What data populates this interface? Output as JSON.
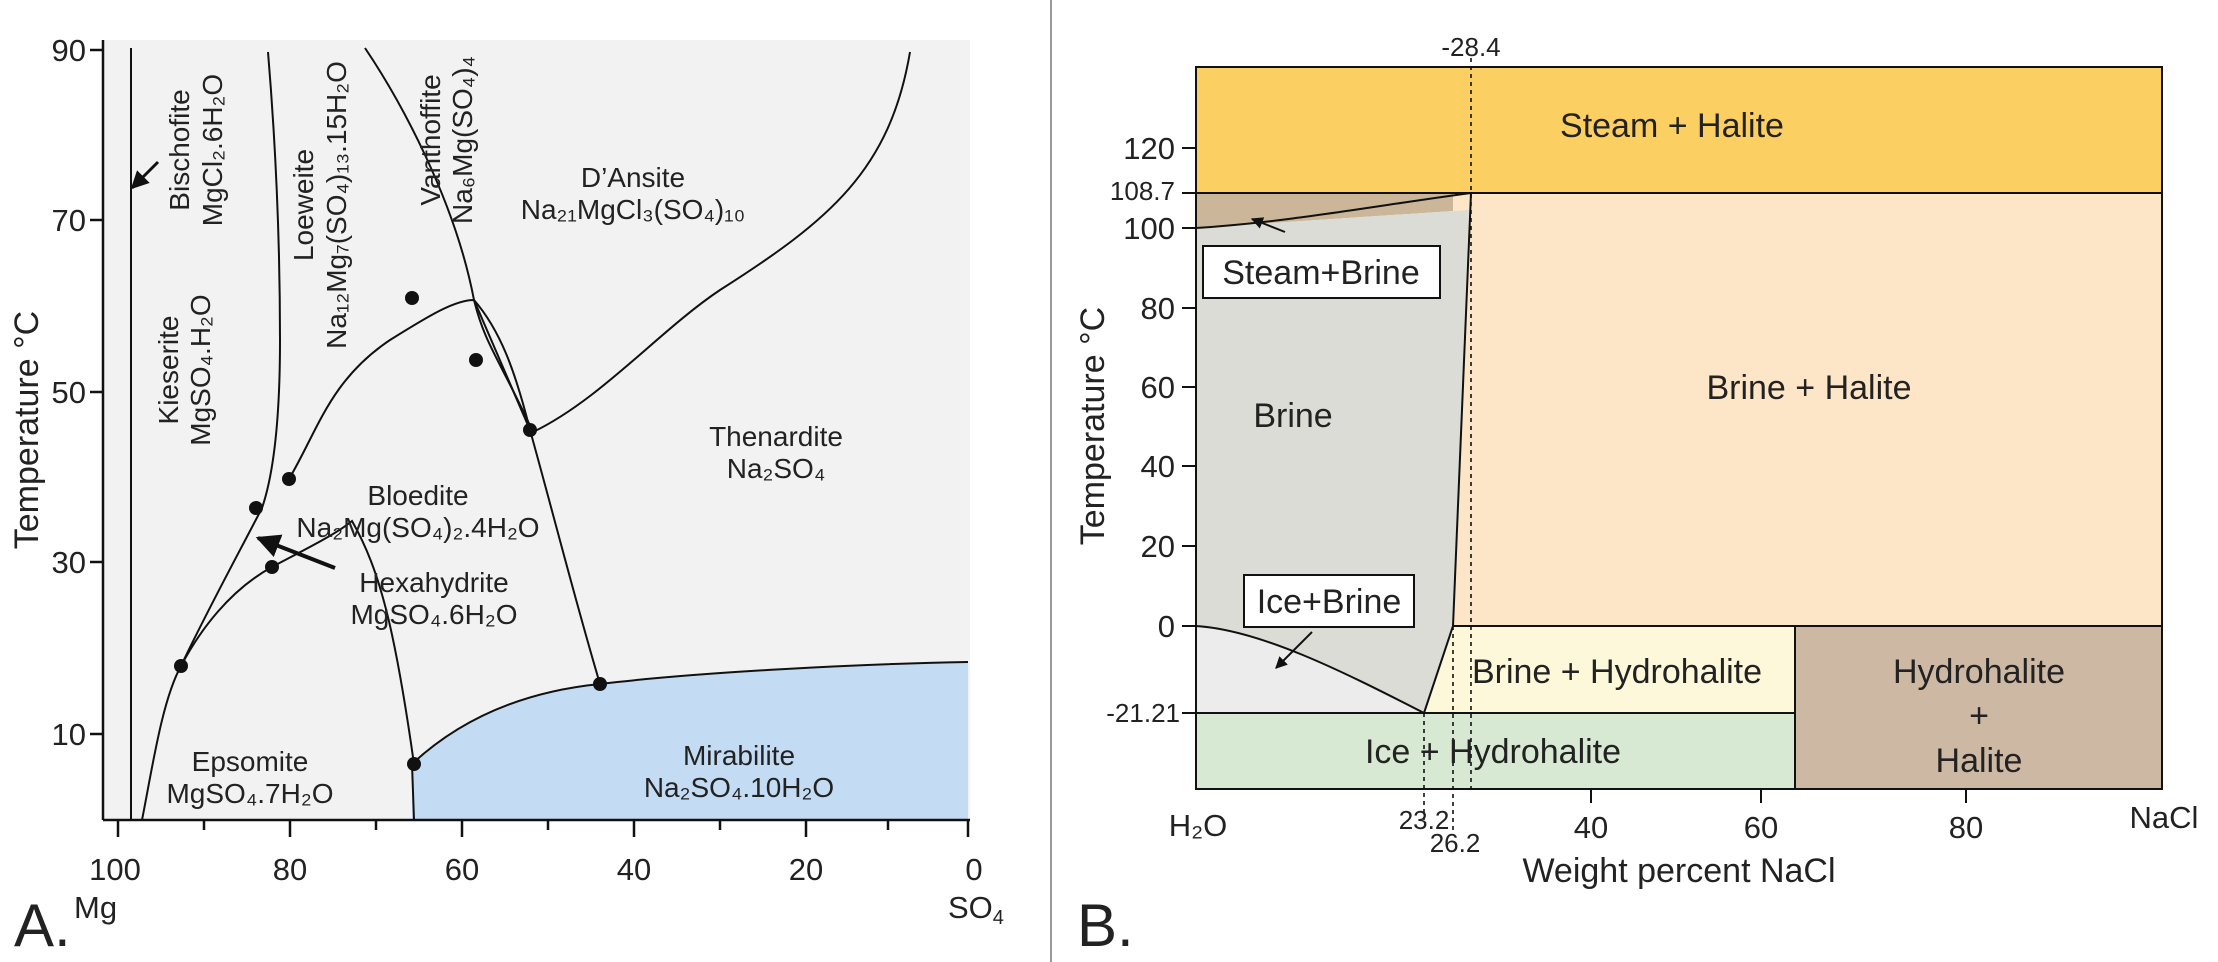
{
  "panel_a": {
    "letter": "A.",
    "y_axis_title": "Temperature °C",
    "y_ticks": [
      "90",
      "70",
      "50",
      "30",
      "10"
    ],
    "x_ticks": [
      "100",
      "80",
      "60",
      "40",
      "20",
      "0"
    ],
    "x_end_left": "Mg",
    "x_end_right": "SO",
    "x_end_right_sub": "4",
    "regions": {
      "bischofite": "Bischofite",
      "bischofite_formula": "MgCl₂.6H₂O",
      "loeweite": "Loeweite",
      "loeweite_formula": "Na₁₂Mg₇(SO₄)₁₃.15H₂O",
      "vanthoffite": "Vanthoffite",
      "vanthoffite_formula": "Na₆Mg(SO₄)₄",
      "dansite": "D’Ansite",
      "dansite_formula": "Na₂₁MgCl₃(SO₄)₁₀",
      "kieserite": "Kieserite",
      "kieserite_formula": "MgSO₄.H₂O",
      "thenardite": "Thenardite",
      "thenardite_formula": "Na₂SO₄",
      "bloedite": "Bloedite",
      "bloedite_formula": "Na₂Mg(SO₄)₂.4H₂O",
      "hexahydrite": "Hexahydrite",
      "hexahydrite_formula": "MgSO₄.6H₂O",
      "epsomite": "Epsomite",
      "epsomite_formula": "MgSO₄.7H₂O",
      "mirabilite": "Mirabilite",
      "mirabilite_formula": "Na₂SO₄.10H₂O"
    }
  },
  "panel_b": {
    "letter": "B.",
    "y_axis_title": "Temperature °C",
    "x_axis_title": "Weight percent NaCl",
    "y_ticks": [
      "120",
      "100",
      "80",
      "60",
      "40",
      "20",
      "0"
    ],
    "x_ticks": [
      "40",
      "60",
      "80"
    ],
    "x_end_left": "H₂O",
    "x_end_right": "NaCl",
    "marker_top": "-28.4",
    "marker_1087": "108.7",
    "marker_2121": "-21.21",
    "marker_232": "23.2",
    "marker_262": "26.2",
    "regions": {
      "steam_halite": "Steam + Halite",
      "brine_halite": "Brine + Halite",
      "brine": "Brine",
      "steam_brine": "Steam+Brine",
      "ice_brine": "Ice+Brine",
      "brine_hydrohalite": "Brine + Hydrohalite",
      "ice_hydrohalite": "Ice + Hydrohalite",
      "hydrohalite": "Hydrohalite",
      "plus": "+",
      "halite": "Halite"
    }
  },
  "colors": {
    "panel_a_field": "#f2f2f2",
    "mirabilite": "#c3dcf3",
    "steam_halite": "#fccf62",
    "brine_halite": "#fde5c7",
    "steam_brine_band": "#cbb69a",
    "brine": "#dcdcd6",
    "ice_brine": "#ececec",
    "brine_hydrohalite": "#fdf8d9",
    "ice_hydrohalite": "#d8e9d3",
    "hydrohalite_halite": "#cdb8a4"
  }
}
